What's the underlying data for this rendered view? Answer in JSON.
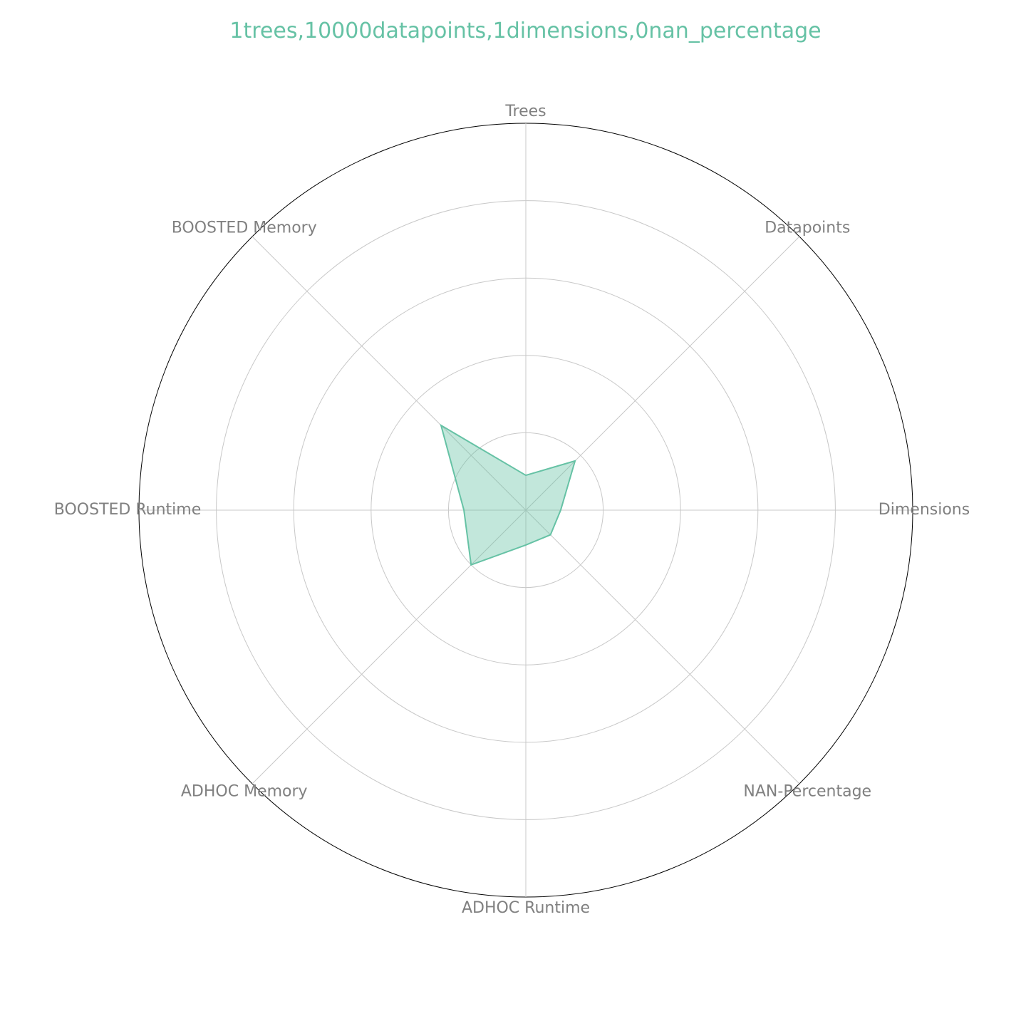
{
  "chart_data": {
    "type": "radar",
    "title": "1trees,10000datapoints,1dimensions,0nan_percentage",
    "categories": [
      "Trees",
      "Datapoints",
      "Dimensions",
      "NAN-Percentage",
      "ADHOC Runtime",
      "ADHOC Memory",
      "BOOSTED Runtime",
      "BOOSTED Memory"
    ],
    "series": [
      {
        "values": [
          0.09,
          0.18,
          0.09,
          0.09,
          0.09,
          0.2,
          0.16,
          0.31
        ],
        "color": "#66c2a5"
      }
    ],
    "rlim": [
      0,
      1
    ],
    "rgrid": [
      0.2,
      0.4,
      0.6,
      0.8
    ],
    "radial_tick_labels_visible": false,
    "grid": true
  }
}
